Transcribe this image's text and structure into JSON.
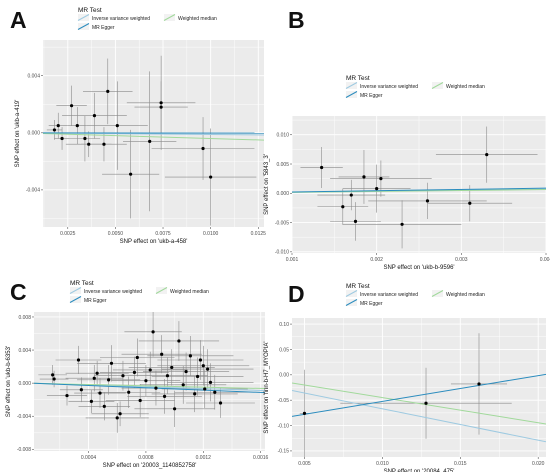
{
  "legend": {
    "title": "MR Test",
    "items": [
      {
        "label": "Inverse variance weighted",
        "color": "#9ecae1"
      },
      {
        "label": "Weighted median",
        "color": "#a1d99b"
      },
      {
        "label": "MR Egger",
        "color": "#2b8cbe"
      }
    ]
  },
  "chart_data": [
    {
      "panel": "A",
      "type": "scatter",
      "xlabel": "SNP effect on 'ukb-a-458'",
      "ylabel": "SNP effect on 'ukb-a-419'",
      "xlim": [
        0.0012,
        0.0128
      ],
      "ylim": [
        -0.0066,
        0.0065
      ],
      "xticks": [
        0.0025,
        0.005,
        0.0075,
        0.01,
        0.0125
      ],
      "xtick_labels": [
        "0.0025",
        "0.0050",
        "0.0075",
        "0.0100",
        "0.0125"
      ],
      "yticks": [
        -0.004,
        0.0,
        0.004
      ],
      "ytick_labels": [
        "-0.004",
        "0.000",
        "0.004"
      ],
      "points": [
        {
          "x": 0.0018,
          "y": 0.0002,
          "xe": 0.0004,
          "ye": 0.0007
        },
        {
          "x": 0.002,
          "y": 0.0005,
          "xe": 0.0005,
          "ye": 0.0009
        },
        {
          "x": 0.0022,
          "y": -0.0004,
          "xe": 0.0004,
          "ye": 0.0008
        },
        {
          "x": 0.0027,
          "y": 0.0019,
          "xe": 0.0008,
          "ye": 0.0014
        },
        {
          "x": 0.003,
          "y": 0.0005,
          "xe": 0.0005,
          "ye": 0.0013
        },
        {
          "x": 0.0034,
          "y": -0.0004,
          "xe": 0.0008,
          "ye": 0.0016
        },
        {
          "x": 0.0036,
          "y": -0.0008,
          "xe": 0.0012,
          "ye": 0.0009
        },
        {
          "x": 0.0039,
          "y": 0.0012,
          "xe": 0.0017,
          "ye": 0.0016
        },
        {
          "x": 0.0044,
          "y": -0.0008,
          "xe": 0.0012,
          "ye": 0.0012
        },
        {
          "x": 0.0046,
          "y": 0.0029,
          "xe": 0.0013,
          "ye": 0.0023
        },
        {
          "x": 0.0051,
          "y": 0.0005,
          "xe": 0.0016,
          "ye": 0.0031
        },
        {
          "x": 0.0058,
          "y": -0.0029,
          "xe": 0.0015,
          "ye": 0.0031
        },
        {
          "x": 0.0068,
          "y": -0.0006,
          "xe": 0.0014,
          "ye": 0.0049
        },
        {
          "x": 0.0074,
          "y": 0.0021,
          "xe": 0.0018,
          "ye": 0.0033
        },
        {
          "x": 0.0074,
          "y": 0.0018,
          "xe": 0.0014,
          "ye": 0.0018
        },
        {
          "x": 0.0096,
          "y": -0.0011,
          "xe": 0.0027,
          "ye": 0.0022
        },
        {
          "x": 0.01,
          "y": -0.0031,
          "xe": 0.0024,
          "ye": 0.0034
        }
      ],
      "lines": [
        {
          "name": "Inverse variance weighted",
          "slope": -0.012
        },
        {
          "name": "Weighted median",
          "slope": -0.04
        },
        {
          "name": "MR Egger",
          "slope": -0.002
        }
      ]
    },
    {
      "panel": "B",
      "type": "scatter",
      "xlabel": "SNP effect on 'ukb-b-9596'",
      "ylabel": "SNP effect on '5843_3'",
      "xlim": [
        0.001,
        0.004
      ],
      "ylim": [
        -0.0102,
        0.0132
      ],
      "xticks": [
        0.001,
        0.002,
        0.003,
        0.004
      ],
      "xtick_labels": [
        "0.001",
        "0.002",
        "0.003",
        "0.004"
      ],
      "yticks": [
        -0.01,
        -0.005,
        0.0,
        0.005,
        0.01
      ],
      "ytick_labels": [
        "-0.010",
        "-0.005",
        "0.000",
        "0.005",
        "0.010"
      ],
      "points": [
        {
          "x": 0.00135,
          "y": 0.0044,
          "xe": 0.00025,
          "ye": 0.0035
        },
        {
          "x": 0.0016,
          "y": -0.0023,
          "xe": 0.0003,
          "ye": 0.0031
        },
        {
          "x": 0.0017,
          "y": -0.0003,
          "xe": 0.0004,
          "ye": 0.0026
        },
        {
          "x": 0.00175,
          "y": -0.0048,
          "xe": 0.0003,
          "ye": 0.0033
        },
        {
          "x": 0.00185,
          "y": 0.0028,
          "xe": 0.0003,
          "ye": 0.0046
        },
        {
          "x": 0.002,
          "y": 0.0008,
          "xe": 0.0004,
          "ye": 0.0041
        },
        {
          "x": 0.00205,
          "y": 0.0025,
          "xe": 0.0006,
          "ye": 0.0031
        },
        {
          "x": 0.0023,
          "y": -0.0053,
          "xe": 0.0007,
          "ye": 0.0041
        },
        {
          "x": 0.0026,
          "y": -0.0013,
          "xe": 0.0007,
          "ye": 0.0031
        },
        {
          "x": 0.0031,
          "y": -0.0017,
          "xe": 0.0005,
          "ye": 0.0031
        },
        {
          "x": 0.0033,
          "y": 0.0066,
          "xe": 0.0006,
          "ye": 0.0048
        }
      ],
      "lines": [
        {
          "name": "Inverse variance weighted",
          "slope": 0.18
        },
        {
          "name": "Weighted median",
          "slope": 0.16
        },
        {
          "name": "MR Egger",
          "slope": 0.22
        }
      ]
    },
    {
      "panel": "C",
      "type": "scatter",
      "xlabel": "SNP effect on '20003_1140852758'",
      "ylabel": "SNP effect on 'ukb-b-6353'",
      "xlim": [
        2e-05,
        0.00163
      ],
      "ylim": [
        -0.0082,
        0.0086
      ],
      "xticks": [
        0.0004,
        0.0008,
        0.0012,
        0.0016
      ],
      "xtick_labels": [
        "0.0004",
        "0.0008",
        "0.0012",
        "0.0016"
      ],
      "yticks": [
        -0.008,
        -0.004,
        0.0,
        0.004,
        0.008
      ],
      "ytick_labels": [
        "-0.008",
        "-0.004",
        "0.000",
        "0.004",
        "0.008"
      ],
      "points": [
        {
          "x": 0.00015,
          "y": 0.001,
          "xe": 0.0001,
          "ye": 0.0012
        },
        {
          "x": 0.00016,
          "y": 0.0005,
          "xe": 0.0001,
          "ye": 0.001
        },
        {
          "x": 0.00025,
          "y": -0.0015,
          "xe": 0.00014,
          "ye": 0.0012
        },
        {
          "x": 0.00033,
          "y": 0.0028,
          "xe": 0.00016,
          "ye": 0.0017
        },
        {
          "x": 0.00035,
          "y": -0.0008,
          "xe": 0.00015,
          "ye": 0.0015
        },
        {
          "x": 0.00042,
          "y": -0.0022,
          "xe": 0.00016,
          "ye": 0.0014
        },
        {
          "x": 0.00044,
          "y": 0.0006,
          "xe": 0.0002,
          "ye": 0.0016
        },
        {
          "x": 0.00046,
          "y": 0.0012,
          "xe": 0.00022,
          "ye": 0.0015
        },
        {
          "x": 0.00048,
          "y": -0.0012,
          "xe": 0.00018,
          "ye": 0.0018
        },
        {
          "x": 0.00051,
          "y": -0.0028,
          "xe": 0.00018,
          "ye": 0.0017
        },
        {
          "x": 0.00054,
          "y": 0.0004,
          "xe": 0.00022,
          "ye": 0.0018
        },
        {
          "x": 0.00056,
          "y": 0.0024,
          "xe": 0.00024,
          "ye": 0.0022
        },
        {
          "x": 0.0006,
          "y": -0.0042,
          "xe": 0.00022,
          "ye": 0.0018
        },
        {
          "x": 0.00062,
          "y": -0.0037,
          "xe": 0.0002,
          "ye": 0.0015
        },
        {
          "x": 0.00064,
          "y": 0.0009,
          "xe": 0.0002,
          "ye": 0.0018
        },
        {
          "x": 0.00068,
          "y": -0.0011,
          "xe": 0.00022,
          "ye": 0.0019
        },
        {
          "x": 0.00072,
          "y": 0.0013,
          "xe": 0.00024,
          "ye": 0.0019
        },
        {
          "x": 0.00074,
          "y": 0.0031,
          "xe": 0.00026,
          "ye": 0.0023
        },
        {
          "x": 0.00076,
          "y": -0.0021,
          "xe": 0.00024,
          "ye": 0.002
        },
        {
          "x": 0.0008,
          "y": 0.0003,
          "xe": 0.00024,
          "ye": 0.0019
        },
        {
          "x": 0.00083,
          "y": 0.0016,
          "xe": 0.00026,
          "ye": 0.0022
        },
        {
          "x": 0.00085,
          "y": 0.0062,
          "xe": 0.0002,
          "ye": 0.003
        },
        {
          "x": 0.00087,
          "y": -0.0006,
          "xe": 0.00024,
          "ye": 0.0021
        },
        {
          "x": 0.00091,
          "y": 0.0035,
          "xe": 0.00028,
          "ye": 0.0023
        },
        {
          "x": 0.00093,
          "y": -0.0016,
          "xe": 0.00026,
          "ye": 0.0021
        },
        {
          "x": 0.00095,
          "y": 0.0009,
          "xe": 0.00028,
          "ye": 0.0022
        },
        {
          "x": 0.00098,
          "y": 0.0019,
          "xe": 0.0003,
          "ye": 0.0022
        },
        {
          "x": 0.001,
          "y": -0.0031,
          "xe": 0.00028,
          "ye": 0.0022
        },
        {
          "x": 0.00103,
          "y": 0.0051,
          "xe": 0.00028,
          "ye": 0.0024
        },
        {
          "x": 0.00106,
          "y": -0.0002,
          "xe": 0.0003,
          "ye": 0.0023
        },
        {
          "x": 0.00108,
          "y": 0.0014,
          "xe": 0.0003,
          "ye": 0.0023
        },
        {
          "x": 0.00111,
          "y": 0.0033,
          "xe": 0.0003,
          "ye": 0.0024
        },
        {
          "x": 0.00114,
          "y": -0.0013,
          "xe": 0.0003,
          "ye": 0.0022
        },
        {
          "x": 0.00116,
          "y": 0.0008,
          "xe": 0.00032,
          "ye": 0.0023
        },
        {
          "x": 0.00118,
          "y": 0.0028,
          "xe": 0.0003,
          "ye": 0.0024
        },
        {
          "x": 0.0012,
          "y": 0.0021,
          "xe": 0.00032,
          "ye": 0.0024
        },
        {
          "x": 0.00121,
          "y": -0.0007,
          "xe": 0.0003,
          "ye": 0.0023
        },
        {
          "x": 0.00123,
          "y": 0.0017,
          "xe": 0.00032,
          "ye": 0.0024
        },
        {
          "x": 0.00125,
          "y": 0.0001,
          "xe": 0.0003,
          "ye": 0.0023
        },
        {
          "x": 0.00128,
          "y": -0.0011,
          "xe": 0.00028,
          "ye": 0.0021
        },
        {
          "x": 0.00132,
          "y": -0.0024,
          "xe": 0.00024,
          "ye": 0.0018
        }
      ],
      "lines": [
        {
          "name": "Inverse variance weighted",
          "slope": -0.55
        },
        {
          "name": "Weighted median",
          "slope": -0.4
        },
        {
          "name": "MR Egger",
          "slope": -0.7
        }
      ]
    },
    {
      "panel": "D",
      "type": "scatter",
      "xlabel": "SNP effect on '20084_475'",
      "ylabel": "SNP effect on 'finn-b-H7_MYOPIA'",
      "xlim": [
        0.0042,
        0.0205
      ],
      "ylim": [
        -0.162,
        0.112
      ],
      "xticks": [
        0.005,
        0.01,
        0.015,
        0.02
      ],
      "xtick_labels": [
        "0.005",
        "0.010",
        "0.015",
        "0.020"
      ],
      "yticks": [
        -0.15,
        -0.1,
        -0.05,
        0.0,
        0.05,
        0.1
      ],
      "ytick_labels": [
        "-0.15",
        "-0.10",
        "-0.05",
        "0.00",
        "0.05",
        "0.10"
      ],
      "points": [
        {
          "x": 0.005,
          "y": -0.076,
          "xe": 0.0003,
          "ye": 0.086
        },
        {
          "x": 0.0128,
          "y": -0.056,
          "xe": 0.0055,
          "ye": 0.07
        },
        {
          "x": 0.0162,
          "y": -0.018,
          "xe": 0.0018,
          "ye": 0.1
        }
      ],
      "lines": [
        {
          "name": "Inverse variance weighted",
          "x1": 0.0042,
          "y1": -0.031,
          "x2": 0.0205,
          "y2": -0.132
        },
        {
          "name": "Weighted median",
          "x1": 0.0042,
          "y1": -0.016,
          "x2": 0.0205,
          "y2": -0.097
        },
        {
          "name": "MR Egger",
          "x1": 0.0042,
          "y1": -0.082,
          "x2": 0.0205,
          "y2": 0.001
        }
      ]
    }
  ]
}
